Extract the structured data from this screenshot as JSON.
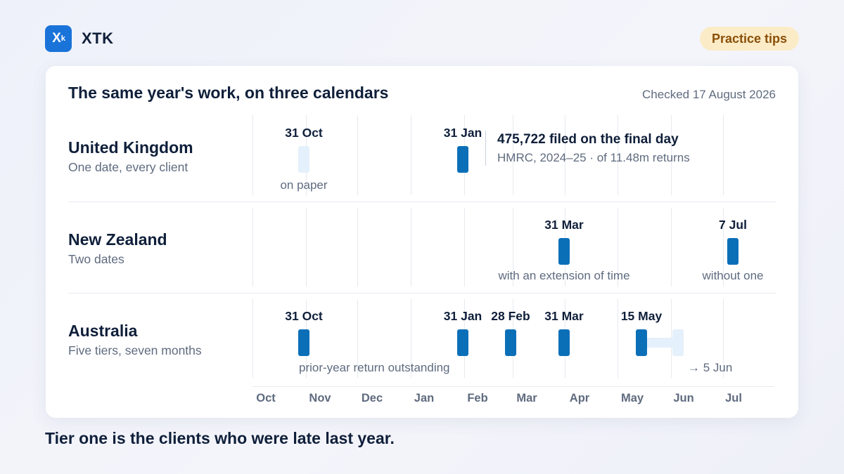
{
  "header": {
    "logo_icon": "xtk-logo-icon",
    "logo_glyph": "X",
    "logo_glyph_sub": "k",
    "brand": "XTK",
    "badge": "Practice tips"
  },
  "card": {
    "title": "The same year's work, on three calendars",
    "checked": "Checked 17 August 2026"
  },
  "months": [
    "Oct",
    "Nov",
    "Dec",
    "Jan",
    "Feb",
    "Mar",
    "Apr",
    "May",
    "Jun",
    "Jul"
  ],
  "rows": {
    "uk": {
      "country": "United Kingdom",
      "subtitle": "One date, every client",
      "paper_date": "31 Oct",
      "paper_note": "on paper",
      "online_date": "31 Jan",
      "callout_title": "475,722 filed on the final day",
      "callout_sub": "HMRC, 2024–25 · of 11.48m returns"
    },
    "nz": {
      "country": "New Zealand",
      "subtitle": "Two dates",
      "date_1": "31 Mar",
      "note_1": "with an extension of time",
      "date_2": "7 Jul",
      "note_2": "without one"
    },
    "au": {
      "country": "Australia",
      "subtitle": "Five tiers, seven months",
      "dates": [
        "31 Oct",
        "31 Jan",
        "28 Feb",
        "31 Mar",
        "15 May"
      ],
      "note_prior": "prior-year return outstanding",
      "note_extend": "→ 5 Jun"
    }
  },
  "colors": {
    "accent": "#0b6fb8",
    "pale": "#e4f0fb",
    "badge_bg": "#fbecc7",
    "badge_text": "#8a4f08"
  },
  "footer": "Tier one is the clients who were late last year."
}
